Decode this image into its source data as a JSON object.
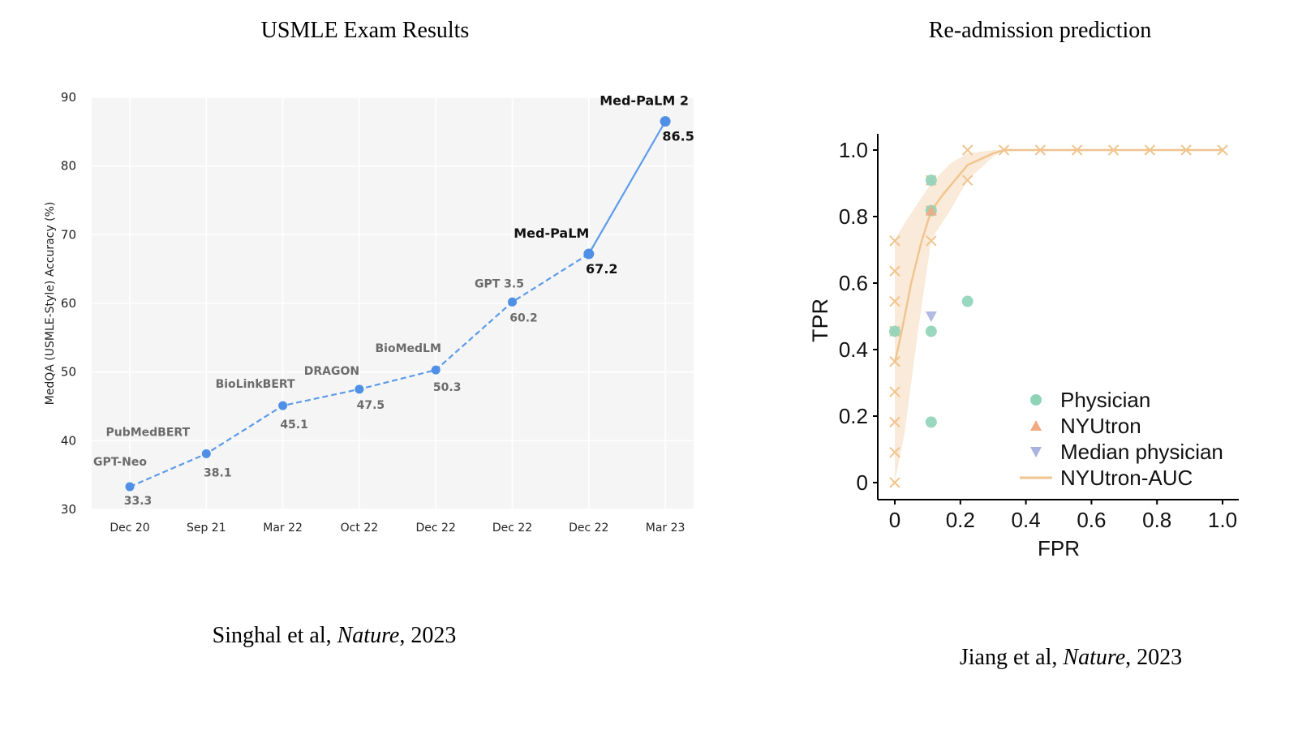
{
  "left": {
    "title": "USMLE Exam Results",
    "citation": {
      "authors": "Singhal et al, ",
      "journal": "Nature",
      "year": ", 2023"
    },
    "chart_data": {
      "type": "line",
      "title": "USMLE Exam Results",
      "ylabel": "MedQA (USMLE-Style) Accuracy (%)",
      "xlabel": "",
      "ylim": [
        30,
        90
      ],
      "yticks": [
        30,
        40,
        50,
        60,
        70,
        80,
        90
      ],
      "categories": [
        "Dec 20",
        "Sep 21",
        "Mar 22",
        "Oct 22",
        "Dec 22",
        "Dec 22",
        "Dec 22",
        "Mar 23"
      ],
      "grid": true,
      "points": [
        {
          "model": "GPT-Neo",
          "value": 33.3,
          "label": "33.3",
          "bold": false
        },
        {
          "model": "PubMedBERT",
          "value": 38.1,
          "label": "38.1",
          "bold": false
        },
        {
          "model": "BioLinkBERT",
          "value": 45.1,
          "label": "45.1",
          "bold": false
        },
        {
          "model": "DRAGON",
          "value": 47.5,
          "label": "47.5",
          "bold": false
        },
        {
          "model": "BioMedLM",
          "value": 50.3,
          "label": "50.3",
          "bold": false
        },
        {
          "model": "GPT 3.5",
          "value": 60.2,
          "label": "60.2",
          "bold": false
        },
        {
          "model": "Med-PaLM",
          "value": 67.2,
          "label": "67.2",
          "bold": true
        },
        {
          "model": "Med-PaLM 2",
          "value": 86.5,
          "label": "86.5",
          "bold": true
        }
      ],
      "colors": {
        "line": "#5b9bea",
        "point": "#4f8fe6",
        "label": "#6b6b6b",
        "bold_label": "#111111",
        "background": "#f5f5f5",
        "grid": "#ffffff"
      }
    }
  },
  "right": {
    "title": "Re-admission prediction",
    "citation": {
      "authors": "Jiang et al, ",
      "journal": "Nature",
      "year": ", 2023"
    },
    "chart_data": {
      "type": "scatter",
      "title": "Re-admission prediction",
      "xlabel": "FPR",
      "ylabel": "TPR",
      "xlim": [
        0,
        1
      ],
      "ylim": [
        0,
        1
      ],
      "xticks": [
        "0",
        "0.2",
        "0.4",
        "0.6",
        "0.8",
        "1.0"
      ],
      "yticks": [
        "0",
        "0.2",
        "0.4",
        "0.6",
        "0.8",
        "1.0"
      ],
      "legend_position": "bottom-right",
      "series": [
        {
          "name": "Physician",
          "marker": "circle",
          "color": "#8fd3b8",
          "points": [
            [
              0,
              0.455
            ],
            [
              0.111,
              0.909
            ],
            [
              0.111,
              0.818
            ],
            [
              0.111,
              0.455
            ],
            [
              0.111,
              0.182
            ],
            [
              0.222,
              0.545
            ]
          ]
        },
        {
          "name": "NYUtron",
          "marker": "triangle-up",
          "color": "#f2a982",
          "points": [
            [
              0.111,
              0.818
            ]
          ]
        },
        {
          "name": "Median physician",
          "marker": "triangle-down",
          "color": "#a9b3e0",
          "points": [
            [
              0.111,
              0.5
            ]
          ]
        },
        {
          "name": "NYUtron-AUC",
          "marker": "line",
          "color": "#f0c48e",
          "curve": [
            [
              0,
              0.36
            ],
            [
              0.02,
              0.45
            ],
            [
              0.05,
              0.6
            ],
            [
              0.08,
              0.72
            ],
            [
              0.111,
              0.818
            ],
            [
              0.15,
              0.87
            ],
            [
              0.222,
              0.955
            ],
            [
              0.3,
              0.99
            ],
            [
              0.333,
              1.0
            ],
            [
              1.0,
              1.0
            ]
          ],
          "band_upper": [
            [
              0,
              0.73
            ],
            [
              0.03,
              0.78
            ],
            [
              0.07,
              0.84
            ],
            [
              0.111,
              0.9
            ],
            [
              0.17,
              0.96
            ],
            [
              0.222,
              0.99
            ],
            [
              0.3,
              1.0
            ],
            [
              0.333,
              1.0
            ]
          ],
          "band_lower": [
            [
              0,
              0.0
            ],
            [
              0.03,
              0.15
            ],
            [
              0.07,
              0.45
            ],
            [
              0.111,
              0.73
            ],
            [
              0.17,
              0.82
            ],
            [
              0.222,
              0.91
            ],
            [
              0.3,
              0.98
            ],
            [
              0.333,
              1.0
            ]
          ],
          "threshold_points": [
            [
              0,
              0
            ],
            [
              0,
              0.091
            ],
            [
              0,
              0.182
            ],
            [
              0,
              0.273
            ],
            [
              0,
              0.364
            ],
            [
              0,
              0.455
            ],
            [
              0,
              0.545
            ],
            [
              0,
              0.636
            ],
            [
              0,
              0.727
            ],
            [
              0.111,
              0.727
            ],
            [
              0.111,
              0.818
            ],
            [
              0.111,
              0.909
            ],
            [
              0.222,
              0.909
            ],
            [
              0.222,
              1.0
            ],
            [
              0.333,
              1.0
            ],
            [
              0.444,
              1.0
            ],
            [
              0.556,
              1.0
            ],
            [
              0.667,
              1.0
            ],
            [
              0.778,
              1.0
            ],
            [
              0.889,
              1.0
            ],
            [
              1.0,
              1.0
            ]
          ]
        }
      ]
    }
  }
}
